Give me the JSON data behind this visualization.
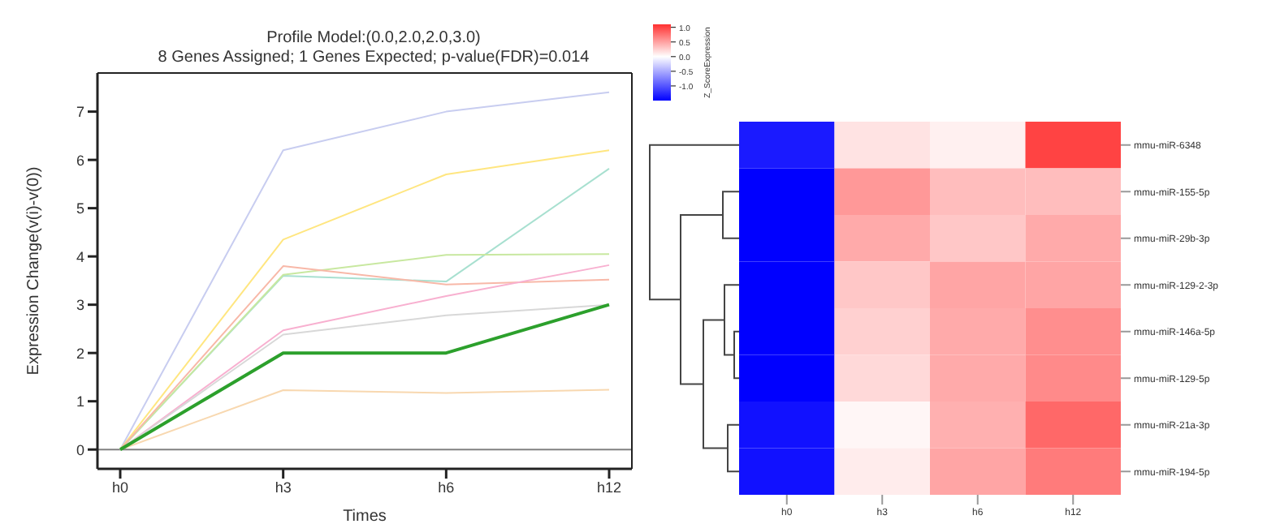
{
  "chart_data": [
    {
      "type": "line",
      "title": "Profile Model:(0.0,2.0,2.0,3.0)",
      "subtitle": "8 Genes Assigned; 1 Genes Expected; p-value(FDR)=0.014",
      "xlabel": "Times",
      "ylabel": "Expression Change(v(i)-v(0))",
      "categories": [
        "h0",
        "h3",
        "h6",
        "h12"
      ],
      "series": [
        {
          "color": "#c8cdf0",
          "values": [
            0,
            6.2,
            7.0,
            7.4
          ]
        },
        {
          "color": "#ffe680",
          "values": [
            0,
            4.35,
            5.7,
            6.2
          ]
        },
        {
          "color": "#a8e0d0",
          "values": [
            0,
            3.6,
            3.48,
            5.82
          ]
        },
        {
          "color": "#c8e8a0",
          "values": [
            0,
            3.62,
            4.03,
            4.05
          ]
        },
        {
          "color": "#f8b8a8",
          "values": [
            0,
            3.8,
            3.42,
            3.52
          ]
        },
        {
          "color": "#f8b0d0",
          "values": [
            0,
            2.47,
            3.18,
            3.82
          ]
        },
        {
          "color": "#d8d8d8",
          "values": [
            0,
            2.38,
            2.78,
            3.0
          ]
        },
        {
          "color": "#f8d8b0",
          "values": [
            0,
            1.23,
            1.17,
            1.24
          ]
        },
        {
          "color": "#2ca02c",
          "values": [
            0,
            2,
            2,
            3
          ]
        }
      ],
      "ylim": [
        -0.4,
        7.8
      ],
      "yticks": [
        0,
        1,
        2,
        3,
        4,
        5,
        6,
        7
      ],
      "ref_lines": [
        {
          "axis": "y",
          "value": 0,
          "color": "#808080"
        }
      ],
      "grid": false,
      "legend": false,
      "marker": "none",
      "line_style": "solid"
    },
    {
      "type": "heatmap",
      "clabel": "Z_ScoreExpression",
      "categories": [
        "h0",
        "h3",
        "h6",
        "h12"
      ],
      "y_categories": [
        "mmu-miR-6348",
        "mmu-miR-155-5p",
        "mmu-miR-29b-3p",
        "mmu-miR-129-2-3p",
        "mmu-miR-146a-5p",
        "mmu-miR-129-5p",
        "mmu-miR-21a-3p",
        "mmu-miR-194-5p"
      ],
      "cells": [
        [
          -1.35,
          0.15,
          0.08,
          1.0
        ],
        [
          -1.5,
          0.55,
          0.35,
          0.35
        ],
        [
          -1.5,
          0.45,
          0.3,
          0.45
        ],
        [
          -1.5,
          0.3,
          0.48,
          0.48
        ],
        [
          -1.5,
          0.25,
          0.45,
          0.6
        ],
        [
          -1.5,
          0.2,
          0.45,
          0.62
        ],
        [
          -1.4,
          0.05,
          0.42,
          0.8
        ],
        [
          -1.4,
          0.1,
          0.48,
          0.7
        ]
      ],
      "clim": [
        -1.5,
        1.1
      ],
      "cticks": [
        {
          "value": -1,
          "label": "-1.0"
        },
        -0.5,
        {
          "value": 0,
          "label": "0.0"
        },
        0.5,
        {
          "value": 1,
          "label": "1.0"
        }
      ]
    }
  ]
}
